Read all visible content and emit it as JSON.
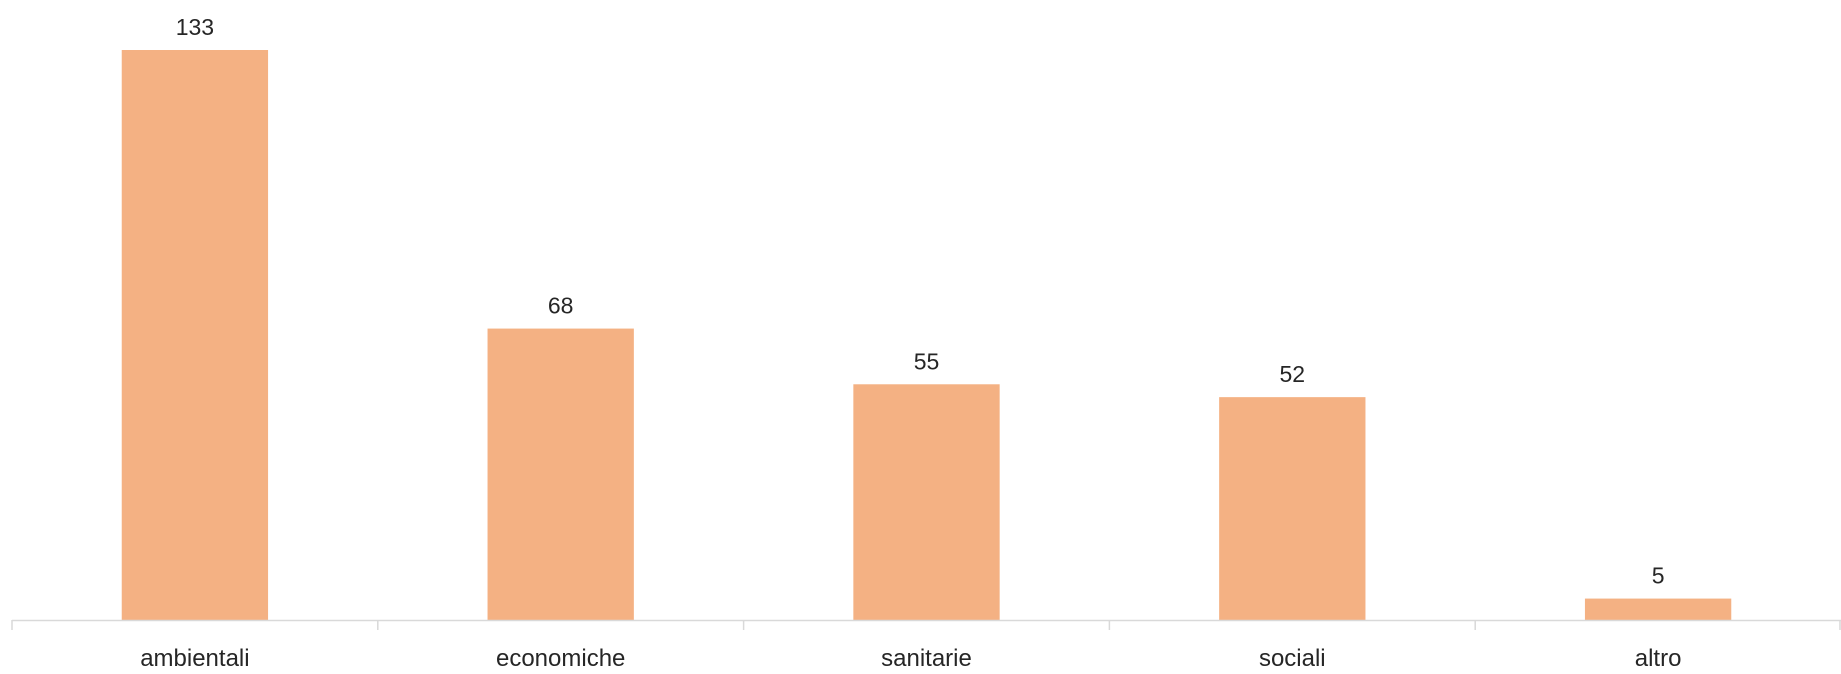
{
  "chart_data": {
    "type": "bar",
    "title": "",
    "xlabel": "",
    "ylabel": "",
    "categories": [
      "ambientali",
      "economiche",
      "sanitarie",
      "sociali",
      "altro"
    ],
    "values": [
      133,
      68,
      55,
      52,
      5
    ],
    "ylim": [
      0,
      133
    ],
    "grid": false,
    "legend": "none",
    "bar_color": "#F4B183",
    "axis_color": "#D9D9D9",
    "text_color": "#262626"
  }
}
